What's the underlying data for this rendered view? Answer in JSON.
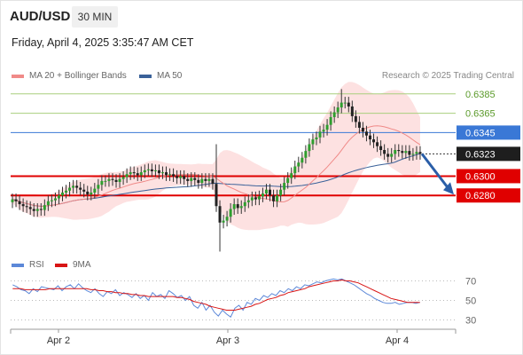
{
  "header": {
    "symbol": "AUD/USD",
    "timeframe": "30 MIN",
    "datetime": "Friday, April 4, 2025 3:35:47 AM CET",
    "credit": "Research © 2025 Trading Central"
  },
  "legend": {
    "ma20": "MA 20 + Bollinger Bands",
    "ma50": "MA 50",
    "rsi": "RSI",
    "ma9": "9MA"
  },
  "colors": {
    "ma20": "#f08a88",
    "ma50": "#3a6199",
    "rsi": "#5c88d8",
    "ma9": "#d81414",
    "band": "#fde1e1",
    "support": "#e00000",
    "pivot": "#3a78d6",
    "resistance": "#a8cf7e",
    "bull": "#2e9e2e",
    "bear": "#222222",
    "arrow": "#2a5ea8"
  },
  "chart_data": [
    {
      "type": "candlestick",
      "x_labels": [
        "Apr 2",
        "Apr 3",
        "Apr 4"
      ],
      "ylim": [
        0.6216,
        0.6394
      ],
      "current_price": 0.6323,
      "levels": [
        {
          "value": 0.6385,
          "label": "0.6385",
          "kind": "resistance"
        },
        {
          "value": 0.6365,
          "label": "0.6365",
          "kind": "resistance"
        },
        {
          "value": 0.6345,
          "label": "0.6345",
          "kind": "pivot"
        },
        {
          "value": 0.63,
          "label": "0.6300",
          "kind": "support"
        },
        {
          "value": 0.628,
          "label": "0.6280",
          "kind": "support"
        }
      ],
      "closes": [
        0.6276,
        0.6274,
        0.6271,
        0.6269,
        0.6268,
        0.6266,
        0.6264,
        0.6266,
        0.6265,
        0.627,
        0.6274,
        0.6275,
        0.6277,
        0.628,
        0.6283,
        0.6285,
        0.6288,
        0.629,
        0.6288,
        0.6286,
        0.6284,
        0.6281,
        0.6283,
        0.6287,
        0.6291,
        0.6295,
        0.6295,
        0.6297,
        0.6296,
        0.6294,
        0.6297,
        0.6299,
        0.6302,
        0.6304,
        0.6303,
        0.6301,
        0.6304,
        0.6306,
        0.6307,
        0.6305,
        0.6306,
        0.6303,
        0.6304,
        0.6301,
        0.6302,
        0.63,
        0.6298,
        0.63,
        0.6297,
        0.6295,
        0.6298,
        0.6296,
        0.6293,
        0.6297,
        0.6295,
        0.6297,
        0.6292,
        0.6269,
        0.6252,
        0.6254,
        0.6258,
        0.6266,
        0.6271,
        0.6267,
        0.6269,
        0.6273,
        0.6275,
        0.6278,
        0.6276,
        0.6279,
        0.6282,
        0.6286,
        0.628,
        0.6274,
        0.628,
        0.6286,
        0.6293,
        0.6298,
        0.6303,
        0.631,
        0.6314,
        0.6319,
        0.6326,
        0.6333,
        0.6338,
        0.634,
        0.6346,
        0.6348,
        0.6353,
        0.6361,
        0.6366,
        0.6371,
        0.6376,
        0.6376,
        0.6372,
        0.6362,
        0.6356,
        0.635,
        0.6346,
        0.6342,
        0.6338,
        0.6335,
        0.6331,
        0.6327,
        0.6323,
        0.632,
        0.6323,
        0.6327,
        0.6326,
        0.6324,
        0.6326,
        0.6322,
        0.6323,
        0.6325,
        0.6323
      ],
      "projection": {
        "from": 0.6323,
        "to": 0.628
      },
      "series": [
        {
          "name": "MA 20 + Bollinger Bands",
          "kind": "ma20"
        },
        {
          "name": "MA 50",
          "kind": "ma50"
        }
      ]
    },
    {
      "type": "line",
      "x_labels": [
        "Apr 2",
        "Apr 3",
        "Apr 4"
      ],
      "ylim": [
        25,
        75
      ],
      "yticks": [
        30,
        50,
        70
      ],
      "series": [
        {
          "name": "RSI",
          "values": [
            66,
            64,
            61,
            60,
            57,
            62,
            59,
            64,
            63,
            62,
            61,
            65,
            60,
            64,
            66,
            62,
            67,
            63,
            60,
            58,
            62,
            57,
            54,
            59,
            57,
            61,
            55,
            58,
            56,
            53,
            57,
            52,
            55,
            50,
            58,
            54,
            56,
            52,
            60,
            57,
            53,
            55,
            50,
            54,
            45,
            42,
            48,
            40,
            45,
            38,
            34,
            40,
            36,
            33,
            42,
            45,
            40,
            48,
            46,
            52,
            50,
            55,
            53,
            57,
            55,
            60,
            58,
            62,
            60,
            64,
            62,
            66,
            65,
            67,
            69,
            68,
            70,
            71,
            72,
            71,
            72,
            70,
            68,
            66,
            63,
            60,
            57,
            55,
            52,
            50,
            48,
            47,
            47,
            48,
            46,
            47,
            48,
            48,
            47,
            48
          ]
        },
        {
          "name": "9MA",
          "values": [
            62,
            62,
            62,
            61,
            61,
            61,
            61,
            61,
            61,
            62,
            62,
            62,
            62,
            62,
            62,
            62,
            62,
            62,
            62,
            61,
            61,
            60,
            60,
            59,
            59,
            58,
            58,
            57,
            57,
            56,
            56,
            55,
            55,
            54,
            54,
            54,
            54,
            54,
            54,
            54,
            53,
            53,
            52,
            51,
            49,
            48,
            47,
            46,
            44,
            43,
            42,
            41,
            40,
            40,
            40,
            41,
            42,
            43,
            44,
            46,
            47,
            49,
            51,
            52,
            53,
            55,
            56,
            58,
            59,
            60,
            61,
            62,
            64,
            65,
            66,
            67,
            68,
            69,
            70,
            70,
            71,
            70,
            70,
            69,
            68,
            66,
            64,
            62,
            60,
            58,
            56,
            54,
            52,
            51,
            50,
            49,
            48,
            48,
            48,
            48
          ]
        }
      ]
    }
  ]
}
